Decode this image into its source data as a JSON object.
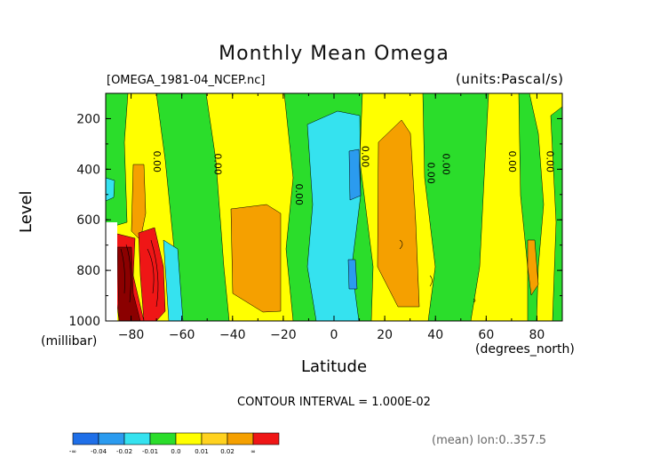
{
  "title": "Monthly Mean Omega",
  "file_label": "[OMEGA_1981-04_NCEP.nc]",
  "units_label": "(units:Pascal/s)",
  "footer": {
    "contour_interval": "CONTOUR INTERVAL = 1.000E-02",
    "mean_note": "(mean) lon:0..357.5"
  },
  "chart_data": {
    "type": "heatmap",
    "title": "Monthly Mean Omega",
    "xlabel": "Latitude",
    "x_unit": "(degrees_north)",
    "ylabel": "Level",
    "y_unit": "(millibar)",
    "xlim": [
      -90,
      90
    ],
    "ylim": [
      1000,
      100
    ],
    "x_ticks": [
      -80,
      -60,
      -40,
      -20,
      0,
      20,
      40,
      60,
      80
    ],
    "y_ticks": [
      200,
      400,
      600,
      800,
      1000
    ],
    "contour_labels": [
      {
        "x": -70,
        "y": 370,
        "text": "0.00"
      },
      {
        "x": -46,
        "y": 380,
        "text": "0.00"
      },
      {
        "x": -14,
        "y": 500,
        "text": "0.00"
      },
      {
        "x": 12,
        "y": 350,
        "text": "0.00"
      },
      {
        "x": 38,
        "y": 415,
        "text": "0.00"
      },
      {
        "x": 44,
        "y": 380,
        "text": "0.00"
      },
      {
        "x": 70,
        "y": 370,
        "text": "0.00"
      },
      {
        "x": 85,
        "y": 370,
        "text": "0.00"
      }
    ],
    "colorbar": {
      "colors": [
        "#1f6fe8",
        "#2b9bef",
        "#35e2ef",
        "#2bdd2b",
        "#ffff00",
        "#ffd21f",
        "#f5a000",
        "#ef1616"
      ],
      "labels": [
        "-∞",
        "-0.04",
        "-0.02",
        "-0.01",
        "0.0",
        "0.01",
        "0.02",
        "∞"
      ]
    },
    "colors": {
      "neg_strong": "#1f6fe8",
      "neg_medium": "#2b9bef",
      "neg_weak": "#35e2ef",
      "near_zero_neg": "#2bdd2b",
      "near_zero_pos": "#ffff00",
      "pos_weak": "#ffd21f",
      "pos_medium": "#f5a000",
      "pos_strong": "#ef1616",
      "pos_extreme": "#8b0000"
    }
  }
}
